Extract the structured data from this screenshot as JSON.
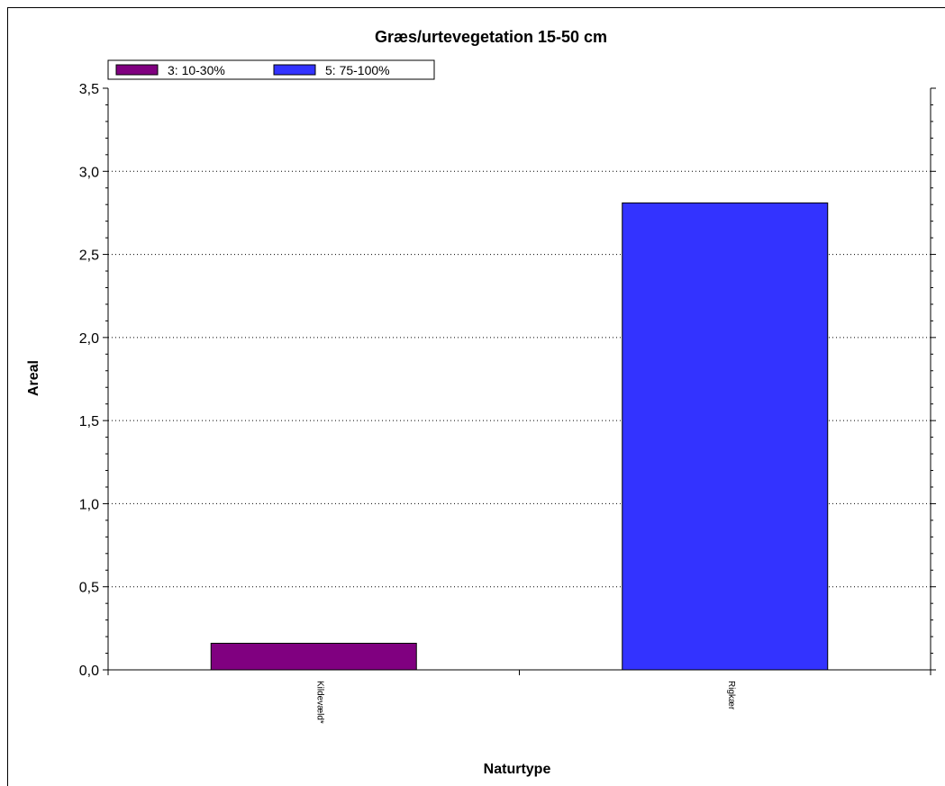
{
  "chart_data": {
    "type": "bar",
    "title": "Græs/urtevegetation 15-50 cm",
    "xlabel": "Naturtype",
    "ylabel": "Areal",
    "categories": [
      "Kildevæld*",
      "Rigkær"
    ],
    "series": [
      {
        "name": "3: 10-30%",
        "color": "#800080",
        "values": [
          0.16,
          null
        ]
      },
      {
        "name": "5: 75-100%",
        "color": "#3333ff",
        "values": [
          null,
          2.81
        ]
      }
    ],
    "ylim": [
      0,
      3.5
    ],
    "yticks": [
      "0,0",
      "0,5",
      "1,0",
      "1,5",
      "2,0",
      "2,5",
      "3,0",
      "3,5"
    ],
    "grid": true,
    "legend_position": "top-left"
  }
}
